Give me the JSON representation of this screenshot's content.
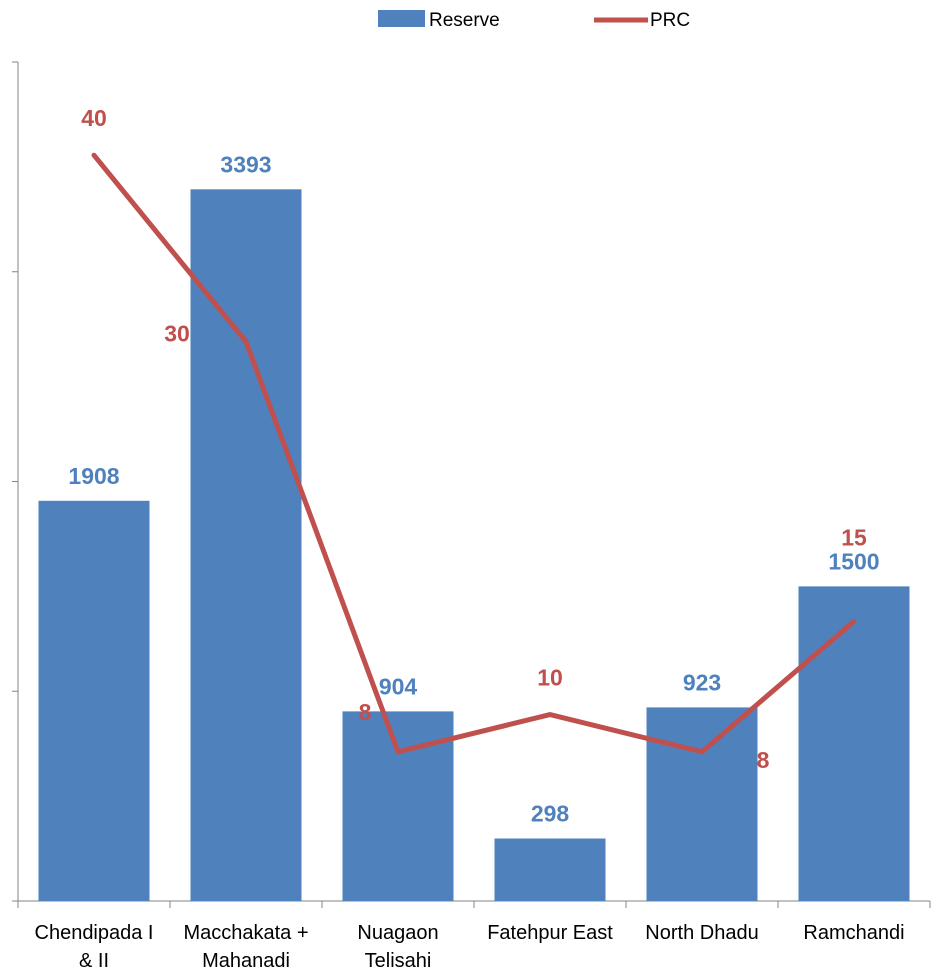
{
  "chart_data": {
    "type": "bar",
    "categories": [
      [
        "Chendipada I",
        "& II"
      ],
      [
        "Macchakata +",
        "Mahanadi"
      ],
      [
        "Nuagaon",
        "Telisahi"
      ],
      [
        "Fatehpur East"
      ],
      [
        "North Dhadu"
      ],
      [
        "Ramchandi"
      ]
    ],
    "series": [
      {
        "name": "Reserve",
        "type": "bar",
        "values": [
          1908,
          3393,
          904,
          298,
          923,
          1500
        ],
        "color": "#4f81bd",
        "axis": "left"
      },
      {
        "name": "PRC",
        "type": "line",
        "values": [
          40,
          30,
          8,
          10,
          8,
          15
        ],
        "color": "#c0504d",
        "axis": "right"
      }
    ],
    "y_left_range": [
      0,
      4000
    ],
    "y_right_range": [
      0,
      45
    ],
    "grid": false,
    "legend_position": "top-center"
  }
}
